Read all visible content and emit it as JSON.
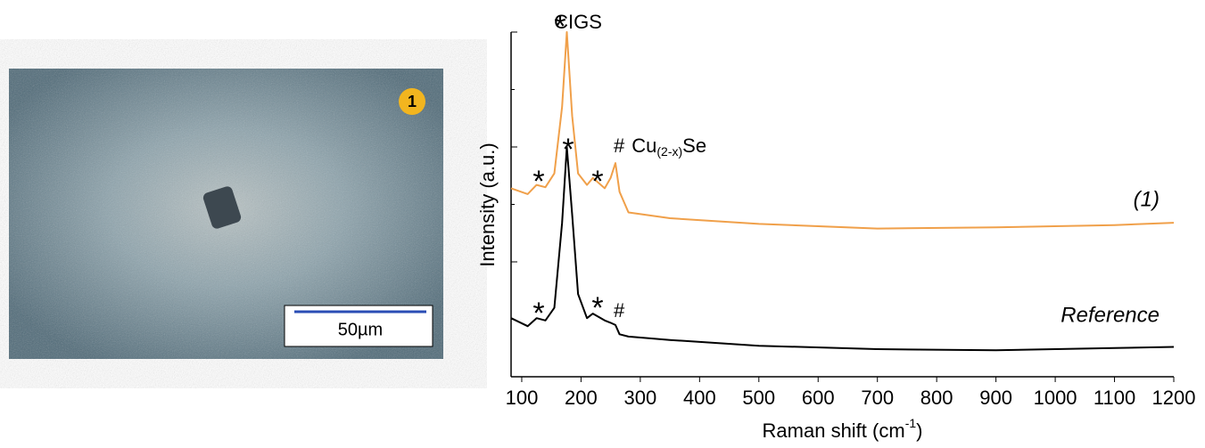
{
  "image": {
    "badge": "1",
    "scale_bar": "50µm"
  },
  "chart_data": {
    "type": "line",
    "xlabel": {
      "text": "Raman shift (cm",
      "sup": "-1",
      "after": ")"
    },
    "ylabel": "Intensity (a.u.)",
    "xlim": [
      82,
      1200
    ],
    "xticks": [
      100,
      200,
      300,
      400,
      500,
      600,
      700,
      800,
      900,
      1000,
      1100,
      1200
    ],
    "ylim": [
      0,
      3
    ],
    "yticks": [
      0,
      0.5,
      1,
      1.5,
      2,
      2.5,
      3
    ],
    "ytick_labels": false,
    "x": [
      82,
      110,
      125,
      140,
      155,
      168,
      176,
      185,
      195,
      210,
      220,
      240,
      250,
      258,
      265,
      280,
      350,
      500,
      700,
      900,
      1100,
      1200
    ],
    "series": [
      {
        "name": "(1)",
        "color": "#f0a04a",
        "values": [
          1.64,
          1.59,
          1.67,
          1.65,
          1.77,
          2.35,
          3.0,
          2.27,
          1.77,
          1.67,
          1.73,
          1.64,
          1.73,
          1.86,
          1.61,
          1.43,
          1.38,
          1.33,
          1.29,
          1.3,
          1.32,
          1.34
        ]
      },
      {
        "name": "Reference",
        "color": "#000000",
        "values": [
          0.51,
          0.44,
          0.51,
          0.49,
          0.6,
          1.34,
          2.0,
          1.41,
          0.72,
          0.51,
          0.55,
          0.49,
          0.47,
          0.45,
          0.37,
          0.35,
          0.32,
          0.27,
          0.24,
          0.23,
          0.25,
          0.26
        ]
      }
    ],
    "annotations": [
      "*",
      "CIGS",
      "*",
      "*",
      "*",
      "*",
      "*",
      "#",
      "Cu",
      "(2-x)",
      "Se",
      "#"
    ]
  }
}
